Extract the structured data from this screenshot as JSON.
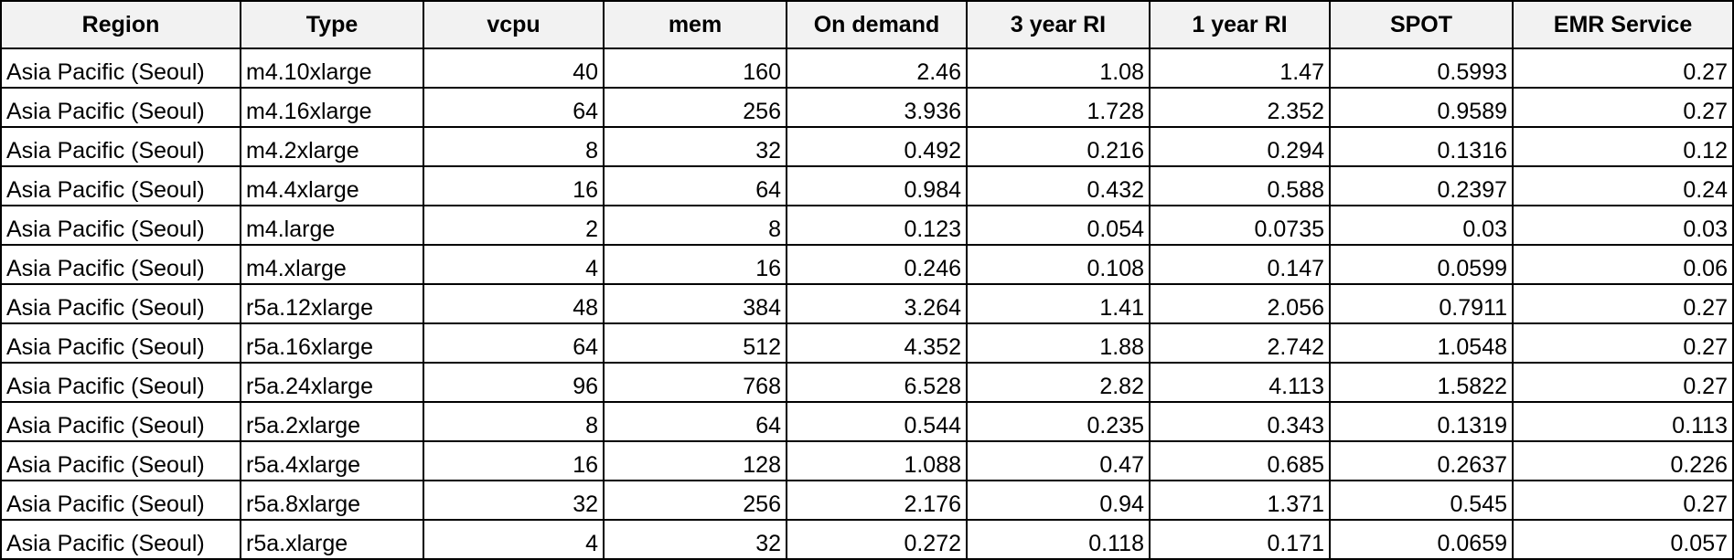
{
  "table": {
    "headers": [
      "Region",
      "Type",
      "vcpu",
      "mem",
      "On demand",
      "3 year RI",
      "1 year RI",
      "SPOT",
      "EMR Service"
    ],
    "rows": [
      [
        "Asia Pacific (Seoul)",
        "m4.10xlarge",
        "40",
        "160",
        "2.46",
        "1.08",
        "1.47",
        "0.5993",
        "0.27"
      ],
      [
        "Asia Pacific (Seoul)",
        "m4.16xlarge",
        "64",
        "256",
        "3.936",
        "1.728",
        "2.352",
        "0.9589",
        "0.27"
      ],
      [
        "Asia Pacific (Seoul)",
        "m4.2xlarge",
        "8",
        "32",
        "0.492",
        "0.216",
        "0.294",
        "0.1316",
        "0.12"
      ],
      [
        "Asia Pacific (Seoul)",
        "m4.4xlarge",
        "16",
        "64",
        "0.984",
        "0.432",
        "0.588",
        "0.2397",
        "0.24"
      ],
      [
        "Asia Pacific (Seoul)",
        "m4.large",
        "2",
        "8",
        "0.123",
        "0.054",
        "0.0735",
        "0.03",
        "0.03"
      ],
      [
        "Asia Pacific (Seoul)",
        "m4.xlarge",
        "4",
        "16",
        "0.246",
        "0.108",
        "0.147",
        "0.0599",
        "0.06"
      ],
      [
        "Asia Pacific (Seoul)",
        "r5a.12xlarge",
        "48",
        "384",
        "3.264",
        "1.41",
        "2.056",
        "0.7911",
        "0.27"
      ],
      [
        "Asia Pacific (Seoul)",
        "r5a.16xlarge",
        "64",
        "512",
        "4.352",
        "1.88",
        "2.742",
        "1.0548",
        "0.27"
      ],
      [
        "Asia Pacific (Seoul)",
        "r5a.24xlarge",
        "96",
        "768",
        "6.528",
        "2.82",
        "4.113",
        "1.5822",
        "0.27"
      ],
      [
        "Asia Pacific (Seoul)",
        "r5a.2xlarge",
        "8",
        "64",
        "0.544",
        "0.235",
        "0.343",
        "0.1319",
        "0.113"
      ],
      [
        "Asia Pacific (Seoul)",
        "r5a.4xlarge",
        "16",
        "128",
        "1.088",
        "0.47",
        "0.685",
        "0.2637",
        "0.226"
      ],
      [
        "Asia Pacific (Seoul)",
        "r5a.8xlarge",
        "32",
        "256",
        "2.176",
        "0.94",
        "1.371",
        "0.545",
        "0.27"
      ],
      [
        "Asia Pacific (Seoul)",
        "r5a.xlarge",
        "4",
        "32",
        "0.272",
        "0.118",
        "0.171",
        "0.0659",
        "0.057"
      ]
    ]
  },
  "colors": {
    "header_background": "#f2f2f2",
    "grid_line": "#000000",
    "text": "#000000"
  }
}
